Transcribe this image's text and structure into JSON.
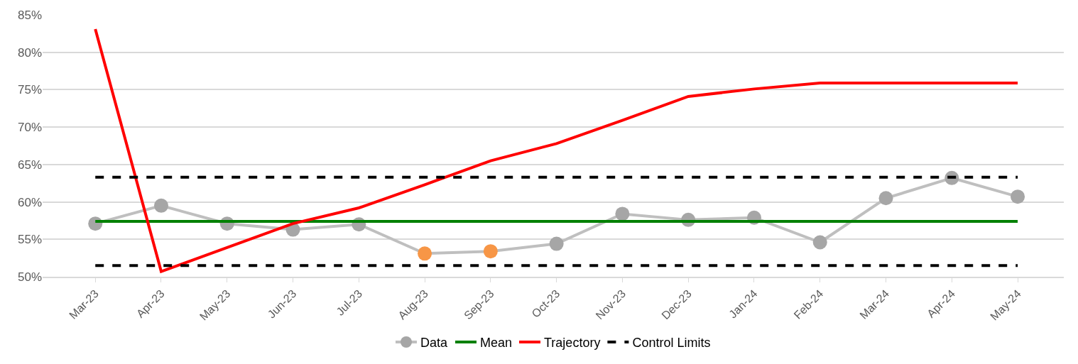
{
  "chart_data": {
    "type": "line",
    "categories": [
      "Mar-23",
      "Apr-23",
      "May-23",
      "Jun-23",
      "Jul-23",
      "Aug-23",
      "Sep-23",
      "Oct-23",
      "Nov-23",
      "Dec-23",
      "Jan-24",
      "Feb-24",
      "Mar-24",
      "Apr-24",
      "May-24"
    ],
    "series": [
      {
        "name": "Data",
        "color": "#bfbfbf",
        "marker": "circle",
        "colors": [
          "#a6a6a6",
          "#a6a6a6",
          "#a6a6a6",
          "#a6a6a6",
          "#a6a6a6",
          "#f79646",
          "#f79646",
          "#a6a6a6",
          "#a6a6a6",
          "#a6a6a6",
          "#a6a6a6",
          "#a6a6a6",
          "#a6a6a6",
          "#a6a6a6",
          "#a6a6a6"
        ],
        "values": [
          57.1,
          59.5,
          57.1,
          56.3,
          57.0,
          53.1,
          53.4,
          54.4,
          58.4,
          57.6,
          57.9,
          54.6,
          60.5,
          63.2,
          60.7
        ]
      },
      {
        "name": "Mean",
        "color": "#008000",
        "values": [
          57.4,
          57.4,
          57.4,
          57.4,
          57.4,
          57.4,
          57.4,
          57.4,
          57.4,
          57.4,
          57.4,
          57.4,
          57.4,
          57.4,
          57.4
        ]
      },
      {
        "name": "Trajectory",
        "color": "#ff0000",
        "values": [
          83.1,
          50.7,
          53.9,
          57.1,
          59.2,
          62.3,
          65.5,
          67.8,
          70.9,
          74.1,
          75.1,
          75.9,
          75.9,
          75.9,
          75.9
        ]
      },
      {
        "name": "Control Limits",
        "color": "#000000",
        "line_style": "dashed",
        "values": [
          63.3,
          63.3,
          63.3,
          63.3,
          63.3,
          63.3,
          63.3,
          63.3,
          63.3,
          63.3,
          63.3,
          63.3,
          63.3,
          63.3,
          63.3
        ]
      },
      {
        "color": "#000000",
        "line_style": "dashed",
        "values": [
          51.5,
          51.5,
          51.5,
          51.5,
          51.5,
          51.5,
          51.5,
          51.5,
          51.5,
          51.5,
          51.5,
          51.5,
          51.5,
          51.5,
          51.5
        ]
      }
    ],
    "ylim": [
      50,
      85
    ],
    "yticks": [
      {
        "value": 50,
        "label": "50%"
      },
      {
        "value": 55,
        "label": "55%"
      },
      {
        "value": 60,
        "label": "60%"
      },
      {
        "value": 65,
        "label": "65%"
      },
      {
        "value": 70,
        "label": "70%"
      },
      {
        "value": 75,
        "label": "75%"
      },
      {
        "value": 80,
        "label": "80%"
      },
      {
        "value": 85,
        "label": "85%"
      }
    ],
    "grid": "y",
    "legend": "bottom"
  }
}
